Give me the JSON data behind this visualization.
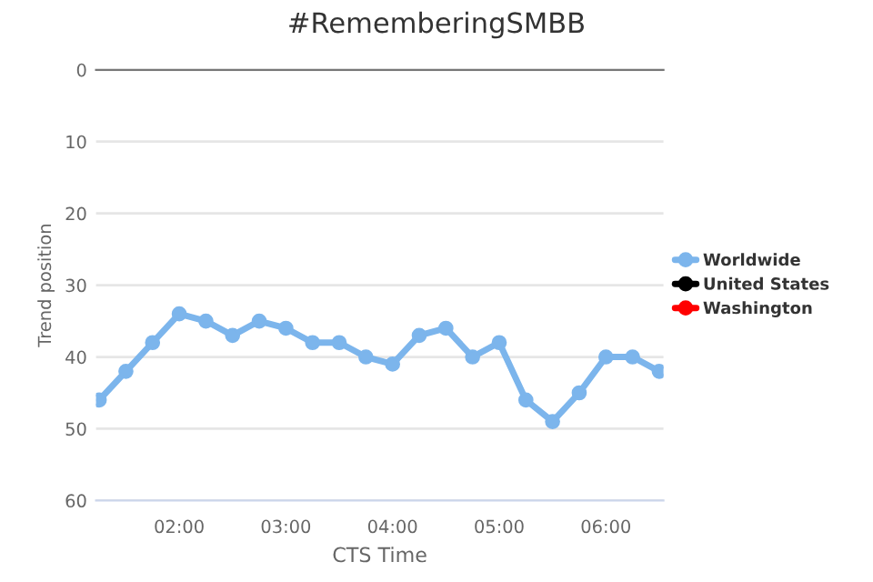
{
  "chart_data": {
    "type": "line",
    "title": "#RememberingSMBB",
    "xlabel": "CTS Time",
    "ylabel": "Trend position",
    "x": [
      1.25,
      1.5,
      1.75,
      2.0,
      2.25,
      2.5,
      2.75,
      3.0,
      3.25,
      3.5,
      3.75,
      4.0,
      4.25,
      4.5,
      4.75,
      5.0,
      5.25,
      5.5,
      5.75,
      6.0,
      6.25,
      6.5
    ],
    "series": [
      {
        "name": "Worldwide",
        "color": "#7cb5ec",
        "values": [
          46,
          42,
          38,
          34,
          35,
          37,
          35,
          36,
          38,
          38,
          40,
          41,
          37,
          36,
          40,
          38,
          46,
          49,
          45,
          40,
          40,
          42
        ]
      },
      {
        "name": "United States",
        "color": "#000000",
        "values": [
          null,
          null,
          null,
          null,
          null,
          null,
          null,
          null,
          null,
          null,
          null,
          null,
          null,
          null,
          null,
          null,
          null,
          null,
          null,
          null,
          null,
          null
        ]
      },
      {
        "name": "Washington",
        "color": "#ff0000",
        "values": [
          null,
          null,
          null,
          null,
          null,
          null,
          null,
          null,
          null,
          null,
          null,
          null,
          null,
          null,
          null,
          null,
          null,
          null,
          null,
          null,
          null,
          null
        ]
      }
    ],
    "xlim": [
      1.22,
      6.54
    ],
    "xticks": [
      {
        "value": 2,
        "label": "02:00"
      },
      {
        "value": 3,
        "label": "03:00"
      },
      {
        "value": 4,
        "label": "04:00"
      },
      {
        "value": 5,
        "label": "05:00"
      },
      {
        "value": 6,
        "label": "06:00"
      }
    ],
    "ylim": [
      60,
      0
    ],
    "yticks": [
      0,
      10,
      20,
      30,
      40,
      50,
      60
    ],
    "grid": "y",
    "legend": "right",
    "marker": "circle",
    "line_style": "solid"
  }
}
